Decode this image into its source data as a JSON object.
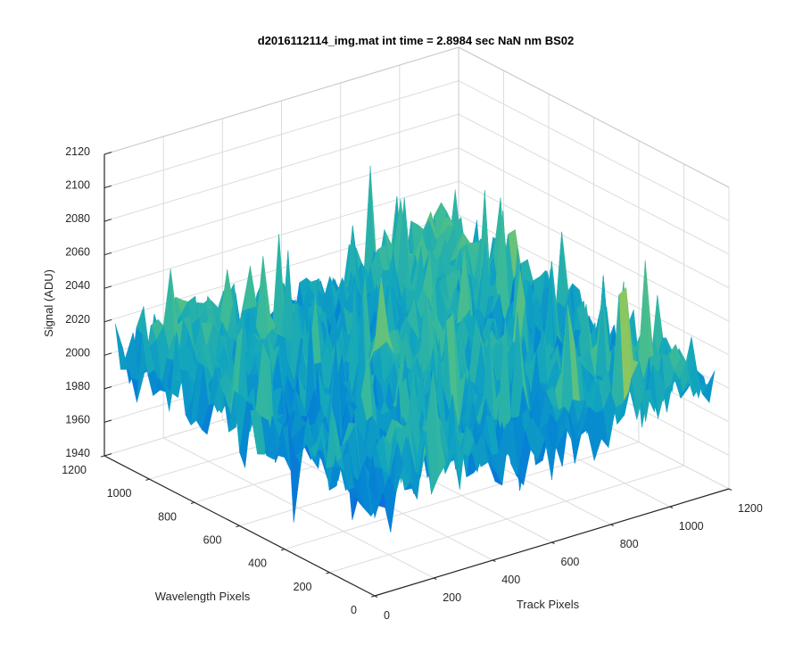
{
  "chart_data": {
    "type": "surface3d",
    "title": "d2016112114_img.mat int time = 2.8984 sec  NaN nm BS02",
    "xlabel": "Track Pixels",
    "ylabel": "Wavelength Pixels",
    "zlabel": "Signal (ADU)",
    "xlim": [
      0,
      1200
    ],
    "ylim": [
      0,
      1200
    ],
    "zlim": [
      1940,
      2120
    ],
    "x_ticks": [
      0,
      200,
      400,
      600,
      800,
      1000,
      1200
    ],
    "y_ticks": [
      0,
      200,
      400,
      600,
      800,
      1000,
      1200
    ],
    "z_ticks": [
      1940,
      1960,
      1980,
      2000,
      2020,
      2040,
      2060,
      2080,
      2100,
      2120
    ],
    "x_tick_labels": [
      "0",
      "200",
      "400",
      "600",
      "800",
      "1000",
      "1200"
    ],
    "y_tick_labels": [
      "0",
      "200",
      "400",
      "600",
      "800",
      "1000",
      "1200"
    ],
    "z_tick_labels": [
      "1940",
      "1960",
      "1980",
      "2000",
      "2020",
      "2040",
      "2060",
      "2080",
      "2100",
      "2120"
    ],
    "grid": true,
    "view": "isometric (az -37.5, el 30)",
    "colormap": "parula",
    "surface_summary": {
      "mean_signal": 2000,
      "min_signal": 1945,
      "max_signal": 2110,
      "notes": "noisy sensor frame around 2000 ADU with spikes up to ~2110"
    }
  }
}
